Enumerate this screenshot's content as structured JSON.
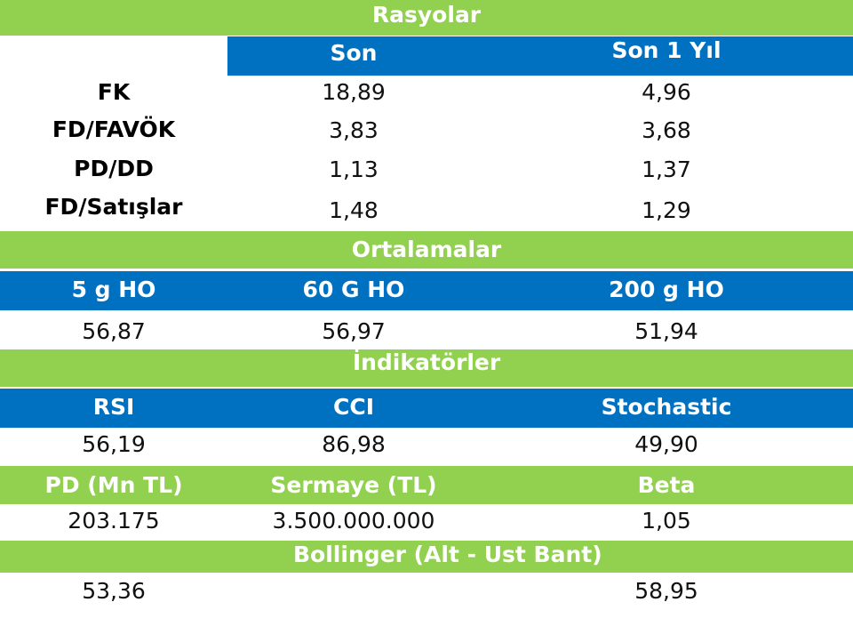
{
  "rasyolar": {
    "title": "Rasyolar",
    "columns": [
      "Son",
      "Son 1 Yıl"
    ],
    "rows": [
      {
        "label": "FK",
        "values": [
          "18,89",
          "4,96"
        ]
      },
      {
        "label": "FD/FAVÖK",
        "values": [
          "3,83",
          "3,68"
        ]
      },
      {
        "label": "PD/DD",
        "values": [
          "1,13",
          "1,37"
        ]
      },
      {
        "label": "FD/Satışlar",
        "values": [
          "1,48",
          "1,29"
        ]
      }
    ]
  },
  "ortalamalar": {
    "title": "Ortalamalar",
    "columns": [
      "5 g HO",
      "60 G HO",
      "200 g HO"
    ],
    "values": [
      "56,87",
      "56,97",
      "51,94"
    ]
  },
  "indikatorler": {
    "title": "İndikatörler",
    "columns": [
      "RSI",
      "CCI",
      "Stochastic"
    ],
    "values": [
      "56,19",
      "86,98",
      "49,90"
    ]
  },
  "piyasa": {
    "columns": [
      "PD (Mn TL)",
      "Sermaye (TL)",
      "Beta"
    ],
    "values": [
      "203.175",
      "3.500.000.000",
      "1,05"
    ]
  },
  "bollinger": {
    "title": "Bollinger (Alt -  Ust Bant)",
    "values": [
      "53,36",
      "58,95"
    ]
  }
}
